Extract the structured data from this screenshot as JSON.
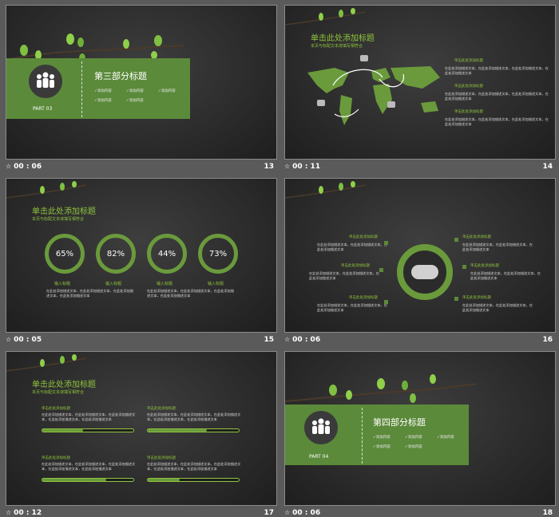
{
  "colors": {
    "accent": "#8fc43d",
    "band": "#5b8a3a",
    "slide_bg": "#2b2b2b",
    "frame_bg": "#5a5a5a"
  },
  "slides": [
    {
      "duration": "00 : 06",
      "number": "13",
      "part_label": "PART 03",
      "title": "第三部分标题",
      "items": [
        "添加内容",
        "添加内容",
        "添加内容",
        "添加内容",
        "添加内容"
      ]
    },
    {
      "duration": "00 : 11",
      "number": "14",
      "title": "单击此处添加标题",
      "subtitle": "本页与标配文本液填写相符合",
      "heads": [
        "单击此处添加标题",
        "单击此处添加标题",
        "单击此处添加标题"
      ],
      "body": "在此处添加描述文本，在此处添加描述文本，在此处添加描述文本，在此处添加描述文本"
    },
    {
      "duration": "00 : 05",
      "number": "15",
      "title": "单击此处添加标题",
      "subtitle": "本页与标配文本液填写相符合",
      "rings": [
        {
          "value": "65%",
          "label": "输入标题"
        },
        {
          "value": "82%",
          "label": "输入标题"
        },
        {
          "value": "44%",
          "label": "输入标题"
        },
        {
          "value": "73%",
          "label": "输入标题"
        }
      ],
      "body": "在此处添加描述文本，在此处添加描述文本，在此处添加描述文本，在此处添加描述文本"
    },
    {
      "duration": "00 : 06",
      "number": "16",
      "heads": [
        "单击此处添加标题",
        "单击此处添加标题",
        "单击此处添加标题",
        "单击此处添加标题",
        "单击此处添加标题",
        "单击此处添加标题"
      ],
      "body": "在此处添加描述文本，在此处添加描述文本，在此处添加描述文本"
    },
    {
      "duration": "00 : 12",
      "number": "17",
      "title": "单击此处添加标题",
      "subtitle": "本页与标配文本液填写相符合",
      "heads": [
        "单击此处添加标题",
        "单击此处添加标题",
        "单击此处添加标题",
        "单击此处添加标题"
      ],
      "progress": [
        0.45,
        0.65,
        0.7,
        0.35
      ],
      "body": "在此处添加描述文本，在此处添加描述文本，在此处添加描述文本，在此处添加描述文本，在此处添加描述文本"
    },
    {
      "duration": "00 : 06",
      "number": "18",
      "part_label": "PART 04",
      "title": "第四部分标题",
      "items": [
        "添加内容",
        "添加内容",
        "添加内容",
        "添加内容",
        "添加内容"
      ]
    }
  ]
}
